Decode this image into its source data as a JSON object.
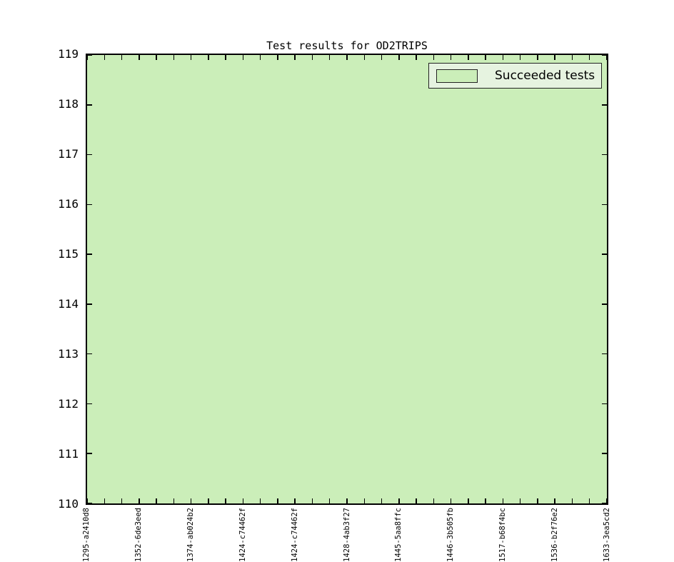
{
  "title": "Test results for OD2TRIPS",
  "colors": {
    "area_fill": "#cbeeb9",
    "legend_bg": "#e6f3e0",
    "axis": "#000000",
    "figure_bg": "#ffffff"
  },
  "legend": {
    "position": "upper-right",
    "items": [
      {
        "label": "Succeeded tests",
        "swatch_color": "#cbeeb9"
      }
    ]
  },
  "chart_data": {
    "type": "area",
    "title": "Test results for OD2TRIPS",
    "xlabel": "",
    "ylabel": "",
    "ylim": [
      110,
      119
    ],
    "yticks": [
      119,
      118,
      117,
      116,
      115,
      114,
      113,
      112,
      111,
      110
    ],
    "x_tick_count": 31,
    "x_major_tick_every": 3,
    "x_labels": [
      "1295-a2410d8",
      "1352-6de3eed",
      "1374-ab024b2",
      "-1424-c74462f",
      "-1424-c74462f",
      "1428-4ab3f27",
      "+1445-5aa8ffc",
      "-1446-3b505fb",
      "-1517-b68f4bc",
      "-1536-b2f76e2",
      "1633-3ea5cd2"
    ],
    "x_labels_rotation_deg": 90,
    "x_labels_clipped_at_bottom": true,
    "series": [
      {
        "name": "Succeeded tests",
        "fill_color": "#cbeeb9",
        "values_note": "filled area covers the entire visible plot region; the succeeded-test count is at or above the top of the visible y-range (>= 119) for every revision shown"
      }
    ],
    "legend_position": "upper right",
    "grid": false,
    "tick_direction": "in"
  }
}
